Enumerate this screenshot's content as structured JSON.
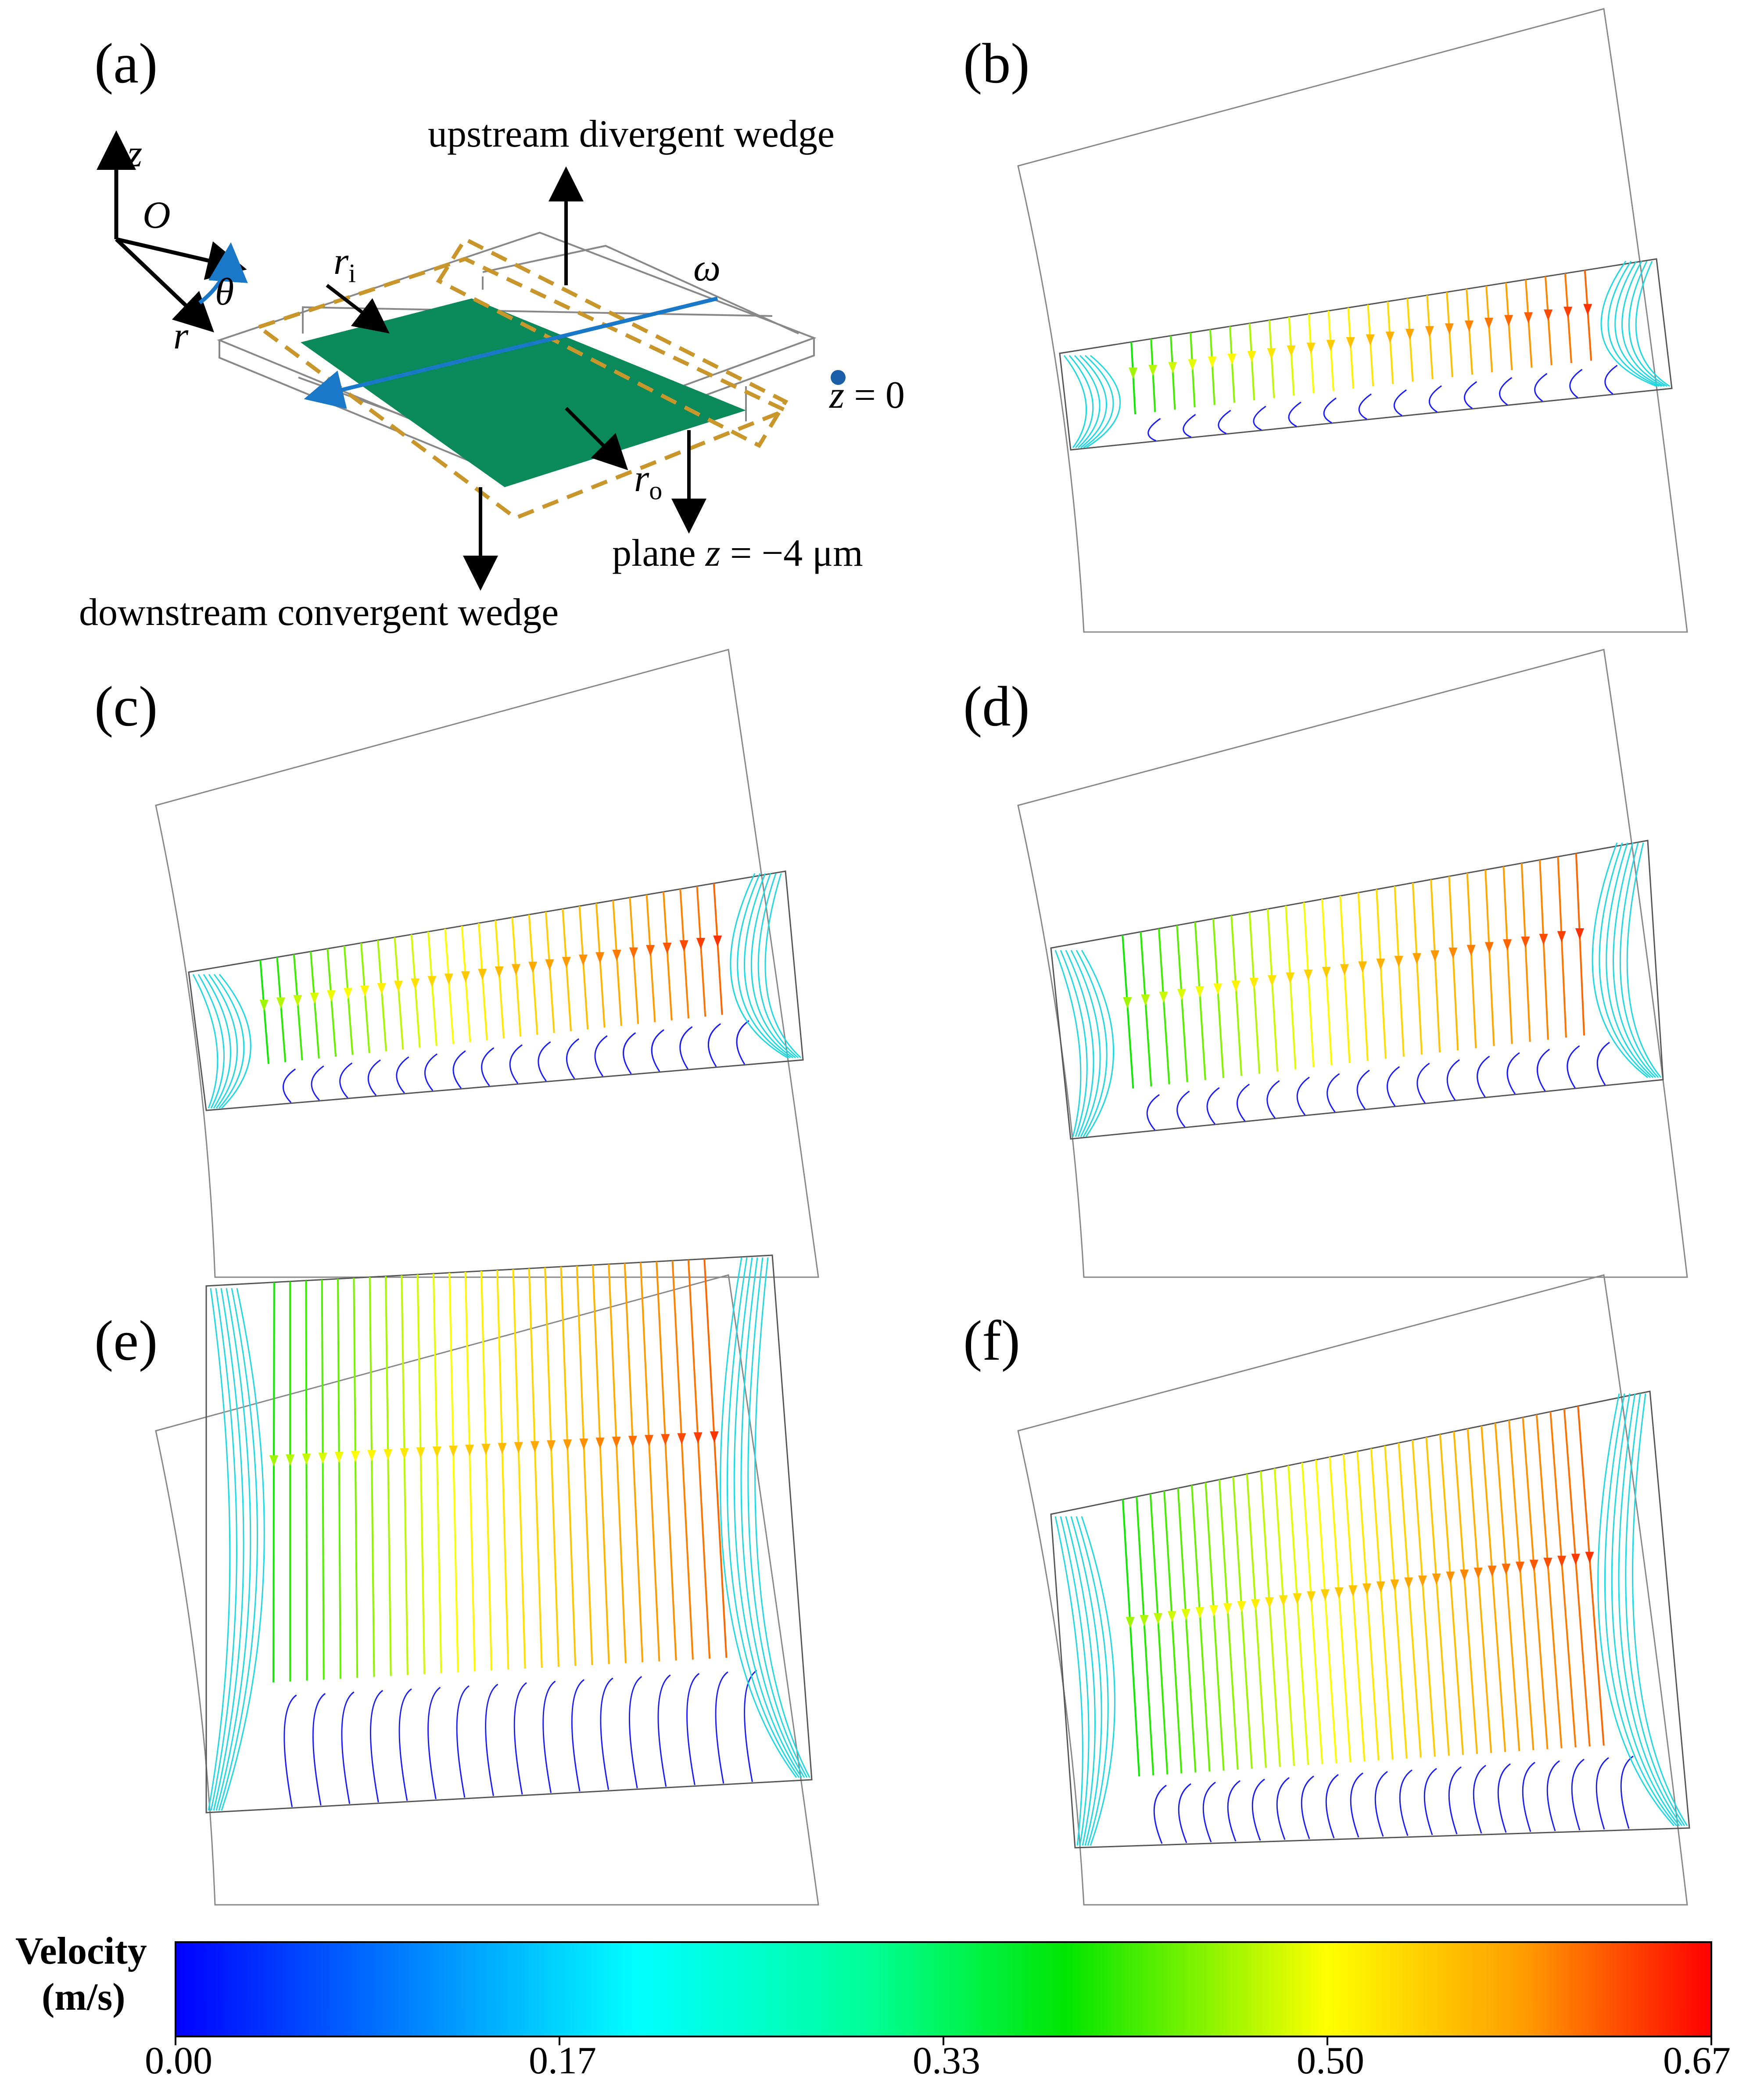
{
  "panels": [
    {
      "id": "a",
      "label": "(a)"
    },
    {
      "id": "b",
      "label": "(b)"
    },
    {
      "id": "c",
      "label": "(c)"
    },
    {
      "id": "d",
      "label": "(d)"
    },
    {
      "id": "e",
      "label": "(e)"
    },
    {
      "id": "f",
      "label": "(f)"
    }
  ],
  "schematic": {
    "axis_z": "z",
    "axis_r": "r",
    "axis_theta": "θ",
    "origin": "O",
    "omega": "ω",
    "r_inner": "r",
    "r_inner_sub": "i",
    "r_outer": "r",
    "r_outer_sub": "o",
    "upstream_label": "upstream divergent wedge",
    "downstream_label": "downstream convergent wedge",
    "z_zero_var": "z",
    "z_zero_rest": " = 0",
    "plane_prefix": "plane ",
    "plane_var": "z",
    "plane_rest": " = −4 μm"
  },
  "colorbar": {
    "title_line1": "Velocity",
    "title_line2": "(m/s)",
    "ticks": [
      "0.00",
      "0.17",
      "0.33",
      "0.50",
      "0.67"
    ],
    "range": [
      0.0,
      0.67
    ],
    "colormap": [
      "#0000ff",
      "#00c8ff",
      "#00ffb0",
      "#00e600",
      "#ffff00",
      "#ff9a00",
      "#ff0000"
    ]
  },
  "colors": {
    "plate": "#0a8a5a",
    "dashed": "#c8962a",
    "omega_line": "#1a78c8",
    "low_velocity": "#1a1aff",
    "side_vortex": "#22d8e0"
  }
}
